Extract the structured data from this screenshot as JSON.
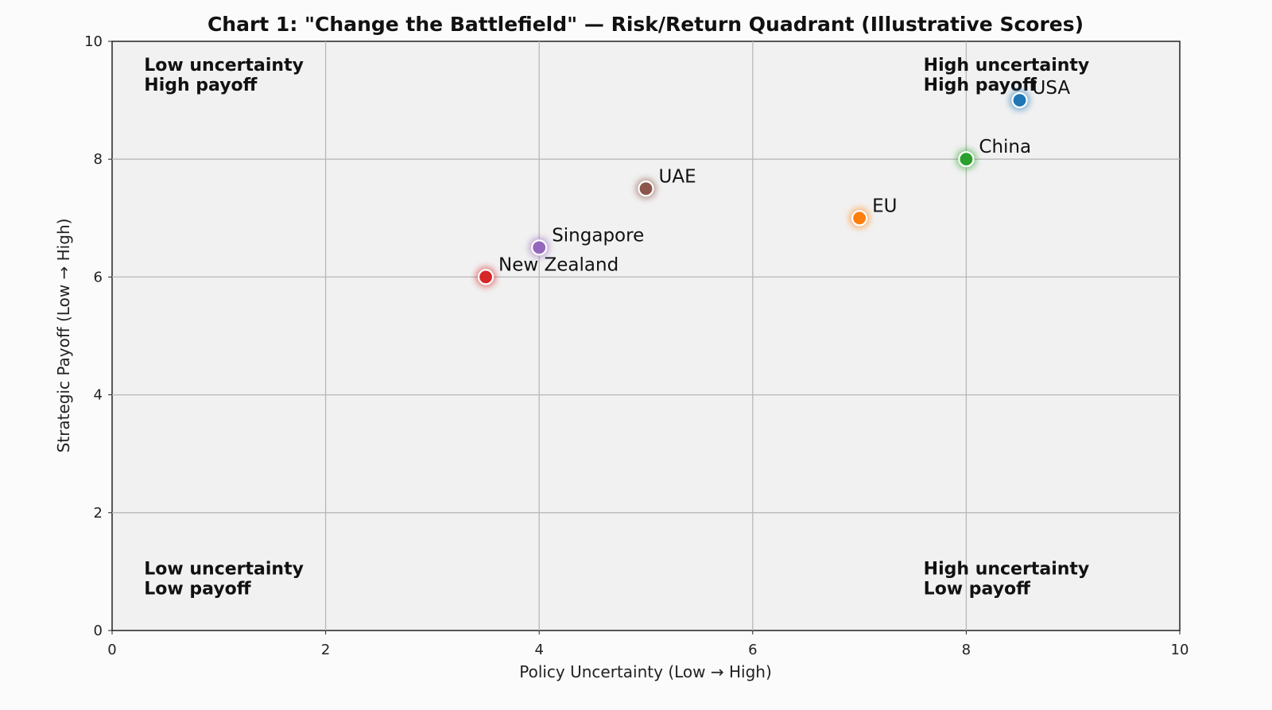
{
  "chart_data": {
    "type": "scatter",
    "title": "Chart 1: \"Change the Battlefield\" — Risk/Return Quadrant (Illustrative Scores)",
    "xlabel": "Policy Uncertainty (Low → High)",
    "ylabel": "Strategic Payoff (Low → High)",
    "xlim": [
      0,
      10
    ],
    "ylim": [
      0,
      10
    ],
    "xticks": [
      "0",
      "2",
      "4",
      "6",
      "8",
      "10"
    ],
    "yticks": [
      "0",
      "2",
      "4",
      "6",
      "8",
      "10"
    ],
    "grid": true,
    "points": [
      {
        "label": "USA",
        "x": 8.5,
        "y": 9.0,
        "color": "#1f77b4"
      },
      {
        "label": "China",
        "x": 8.0,
        "y": 8.0,
        "color": "#2ca02c"
      },
      {
        "label": "EU",
        "x": 7.0,
        "y": 7.0,
        "color": "#ff7f0e"
      },
      {
        "label": "UAE",
        "x": 5.0,
        "y": 7.5,
        "color": "#8c564b"
      },
      {
        "label": "Singapore",
        "x": 4.0,
        "y": 6.5,
        "color": "#9467bd"
      },
      {
        "label": "New Zealand",
        "x": 3.5,
        "y": 6.0,
        "color": "#d62728"
      }
    ],
    "annotations": [
      {
        "lines": [
          "Low uncertainty",
          "High payoff"
        ],
        "x": 0.3,
        "y": 9.5
      },
      {
        "lines": [
          "High uncertainty",
          "High payoff"
        ],
        "x": 7.6,
        "y": 9.5
      },
      {
        "lines": [
          "Low uncertainty",
          "Low payoff"
        ],
        "x": 0.3,
        "y": 0.95
      },
      {
        "lines": [
          "High uncertainty",
          "Low payoff"
        ],
        "x": 7.6,
        "y": 0.95
      }
    ]
  }
}
